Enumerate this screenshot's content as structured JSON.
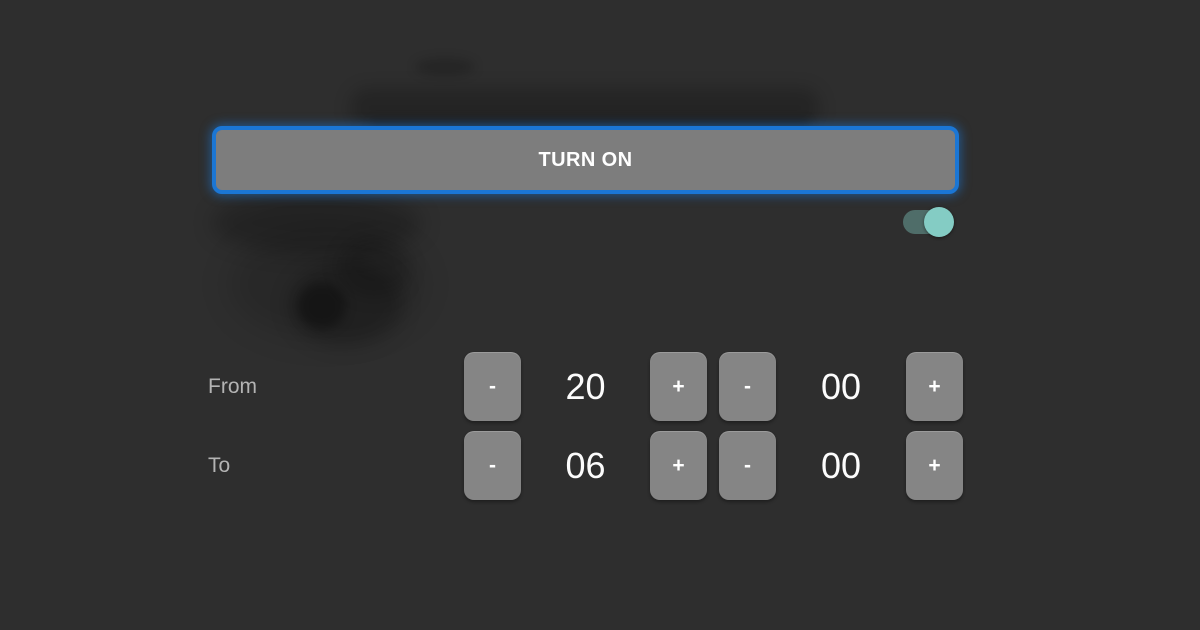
{
  "turn_on": {
    "label": "TURN ON"
  },
  "toggle": {
    "state": "on"
  },
  "stepper": {
    "minus": "-",
    "plus": "+"
  },
  "rows": [
    {
      "label": "From",
      "hour": "20",
      "minute": "00"
    },
    {
      "label": "To",
      "hour": "06",
      "minute": "00"
    }
  ],
  "colors": {
    "background": "#2e2e2e",
    "focus_blue": "#1b76d4",
    "button_gray": "#7d7d7d",
    "stepper_gray": "#858585",
    "toggle_thumb_teal": "#84ccc4",
    "label_gray": "#b3b3b3",
    "text_white": "#ffffff"
  }
}
